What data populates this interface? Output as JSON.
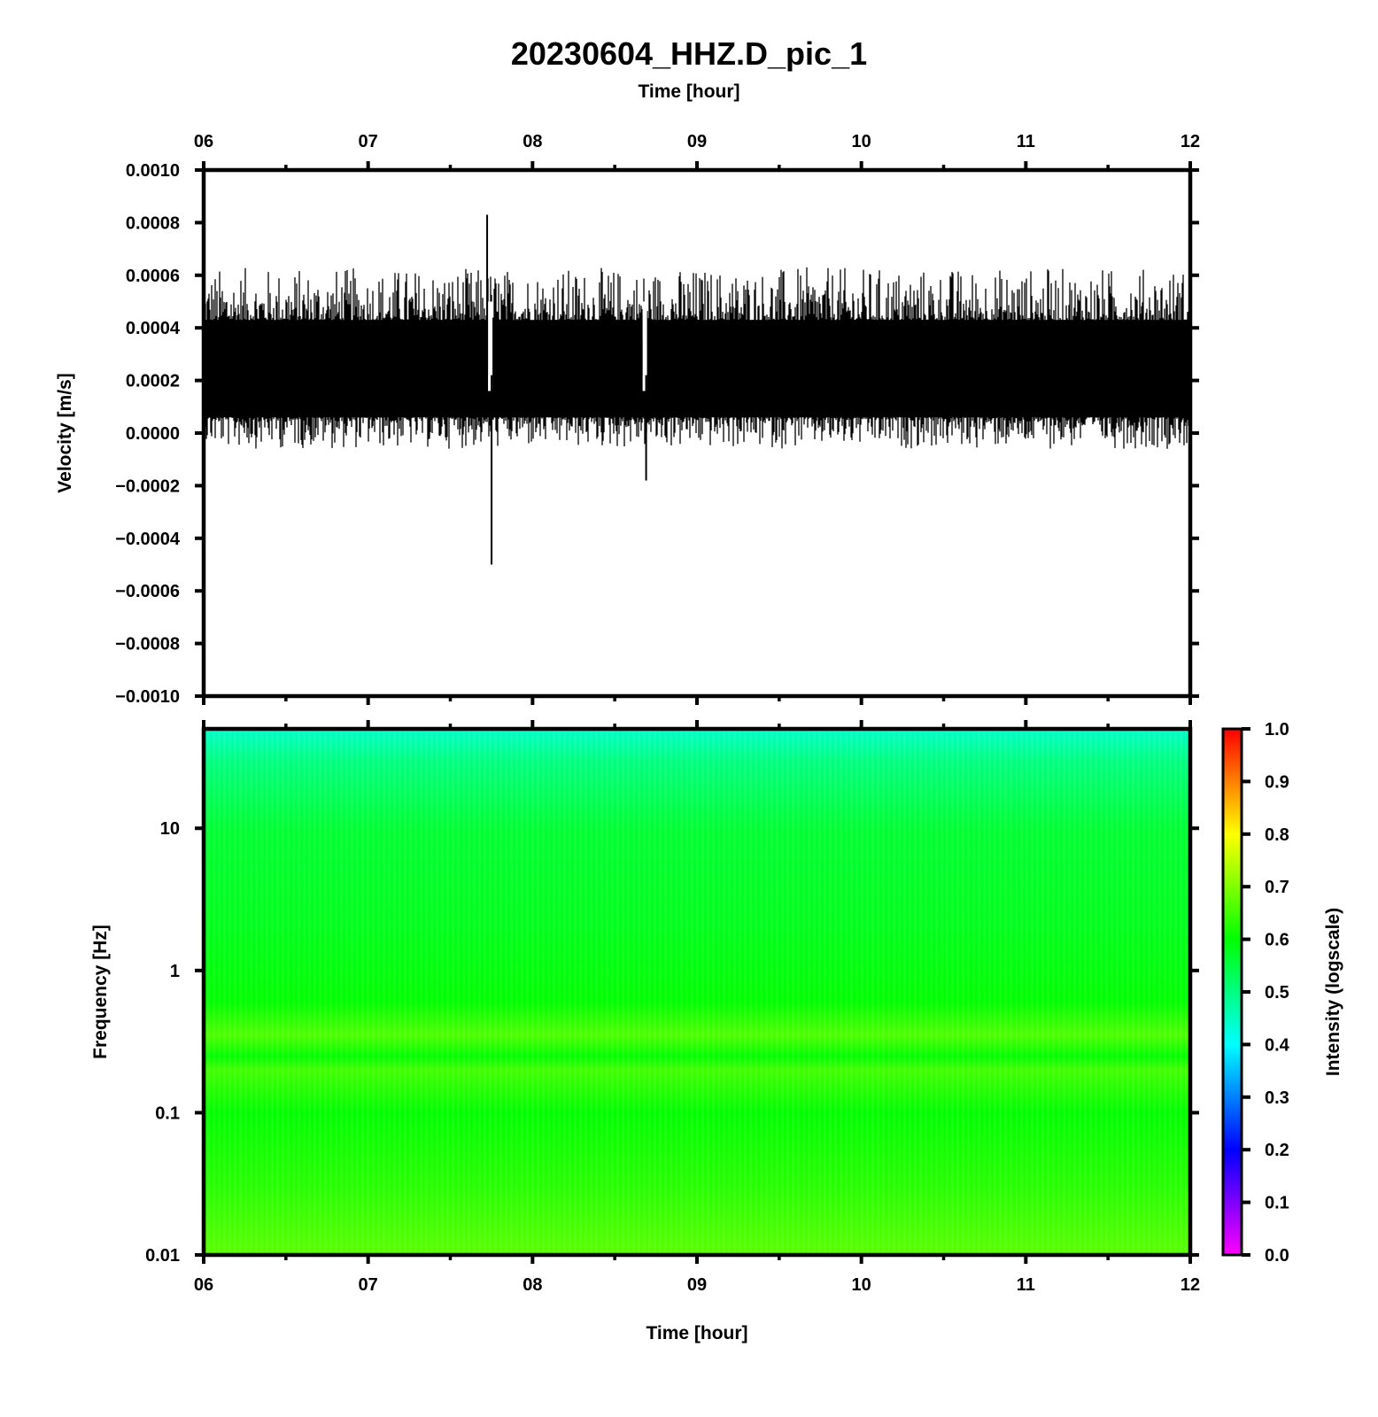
{
  "figure": {
    "title": "20230604_HHZ.D_pic_1",
    "top_time_label": "Time [hour]",
    "bottom_time_label": "Time [hour]"
  },
  "chart_data": [
    {
      "type": "line",
      "name": "seismogram",
      "xlabel": "Time [hour]",
      "ylabel": "Velocity [m/s]",
      "xlim": [
        6,
        12
      ],
      "ylim": [
        -0.001,
        0.001
      ],
      "x_tick_labels": [
        "06",
        "07",
        "08",
        "09",
        "10",
        "11",
        "12"
      ],
      "y_ticks": [
        0.001,
        0.0008,
        0.0006,
        0.0004,
        0.0002,
        0.0,
        -0.0002,
        -0.0004,
        -0.0006,
        -0.0008,
        -0.001
      ],
      "y_tick_labels": [
        "0.0010",
        "0.0008",
        "0.0006",
        "0.0004",
        "0.0002",
        "0.0000",
        "−0.0002",
        "−0.0004",
        "−0.0006",
        "−0.0008",
        "−0.0010"
      ],
      "trace": {
        "mean": 0.00022,
        "noise_envelope": [
          5e-05,
          0.00045
        ],
        "x_start": 6.0,
        "x_end": 12.0
      },
      "events": [
        {
          "time": 7.74,
          "max": 0.00083,
          "min": -0.0005
        },
        {
          "time": 8.68,
          "max": 0.00036,
          "min": -0.00018
        }
      ]
    },
    {
      "type": "heatmap",
      "name": "spectrogram",
      "xlabel": "Time [hour]",
      "ylabel": "Frequency [Hz]",
      "xlim": [
        6,
        12
      ],
      "ylim": [
        0.01,
        50
      ],
      "y_scale": "log",
      "x_tick_labels": [
        "06",
        "07",
        "08",
        "09",
        "10",
        "11",
        "12"
      ],
      "y_ticks": [
        10,
        1,
        0.1,
        0.01
      ],
      "y_tick_labels": [
        "10",
        "1",
        "0.1",
        "0.01"
      ],
      "intensity_profile": [
        {
          "freq": 50,
          "intensity": 0.44
        },
        {
          "freq": 30,
          "intensity": 0.5
        },
        {
          "freq": 10,
          "intensity": 0.56
        },
        {
          "freq": 2,
          "intensity": 0.58
        },
        {
          "freq": 0.6,
          "intensity": 0.6
        },
        {
          "freq": 0.35,
          "intensity": 0.66
        },
        {
          "freq": 0.25,
          "intensity": 0.6
        },
        {
          "freq": 0.2,
          "intensity": 0.65
        },
        {
          "freq": 0.1,
          "intensity": 0.6
        },
        {
          "freq": 0.03,
          "intensity": 0.63
        },
        {
          "freq": 0.01,
          "intensity": 0.67
        }
      ],
      "colorbar": {
        "label": "Intensity (logscale)",
        "range": [
          0,
          1
        ],
        "tick_labels": [
          "1.0",
          "0.9",
          "0.8",
          "0.7",
          "0.6",
          "0.5",
          "0.4",
          "0.3",
          "0.2",
          "0.1",
          "0.0"
        ],
        "colormap": [
          "#ff00ff",
          "#8000ff",
          "#0000ff",
          "#0080ff",
          "#00ffff",
          "#00ff80",
          "#00ff00",
          "#80ff00",
          "#ffff00",
          "#ff8000",
          "#ff0000"
        ]
      }
    }
  ]
}
